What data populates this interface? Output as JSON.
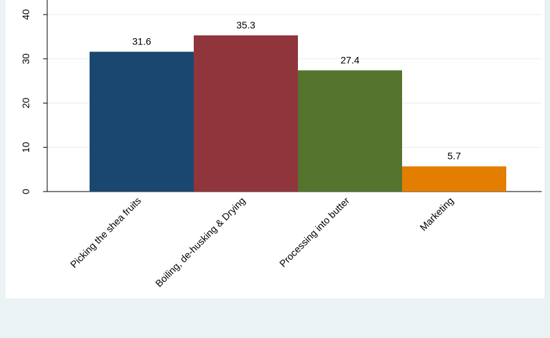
{
  "chart_data": {
    "type": "bar",
    "categories": [
      "Picking the shea fruits",
      "Boiling, de-husking & Drying",
      "Processing into butter",
      "Marketing"
    ],
    "values": [
      31.6,
      35.3,
      27.4,
      5.7
    ],
    "colors": [
      "#1a476f",
      "#90353b",
      "#55752f",
      "#e37e00"
    ],
    "ylim": [
      0,
      40
    ],
    "yticks": [
      0,
      10,
      20,
      30,
      40
    ],
    "grid": true
  }
}
